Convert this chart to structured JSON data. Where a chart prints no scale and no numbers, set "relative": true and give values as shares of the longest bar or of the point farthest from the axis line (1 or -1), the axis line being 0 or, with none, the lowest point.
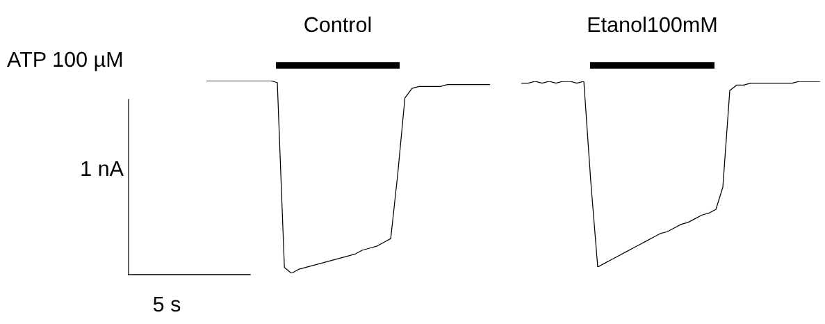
{
  "chart_data": [
    {
      "type": "line",
      "title": "Control",
      "relative": true,
      "annotations": [
        "ATP 100 µM",
        "1 nA",
        "5 s"
      ],
      "categories": [
        null,
        null,
        null,
        null,
        null,
        null,
        null,
        null,
        null,
        null,
        null,
        null,
        null,
        null,
        null,
        null,
        null,
        null,
        null,
        null,
        null,
        null,
        null,
        null,
        null,
        null,
        null,
        null,
        null,
        null,
        null,
        null,
        null,
        null,
        null,
        null,
        null,
        null,
        null,
        null,
        null
      ],
      "series": [
        {
          "color": "#000000",
          "values": [
            1.0,
            1.0,
            1.0,
            1.0,
            1.0,
            1.0,
            1.0,
            1.0,
            1.0,
            1.0,
            0.99,
            0.03,
            0.0,
            0.02,
            0.03,
            0.04,
            0.05,
            0.06,
            0.07,
            0.08,
            0.09,
            0.1,
            0.12,
            0.13,
            0.14,
            0.16,
            0.18,
            0.52,
            0.91,
            0.96,
            0.97,
            0.97,
            0.97,
            0.97,
            0.98,
            0.98,
            0.98,
            0.98,
            0.98,
            0.98,
            0.98
          ]
        }
      ]
    },
    {
      "type": "line",
      "title": "Etanol100mM",
      "relative": true,
      "categories": [
        null,
        null,
        null,
        null,
        null,
        null,
        null,
        null,
        null,
        null,
        null,
        null,
        null,
        null,
        null,
        null,
        null,
        null,
        null,
        null,
        null,
        null,
        null,
        null,
        null,
        null,
        null,
        null,
        null,
        null,
        null,
        null,
        null,
        null,
        null,
        null,
        null,
        null,
        null,
        null,
        null,
        null,
        null,
        null
      ],
      "series": [
        {
          "color": "#000000",
          "values": [
            0.99,
            0.99,
            1.0,
            0.99,
            1.0,
            0.99,
            1.0,
            1.0,
            0.99,
            1.0,
            0.46,
            0.0,
            0.02,
            0.04,
            0.06,
            0.08,
            0.1,
            0.12,
            0.14,
            0.16,
            0.18,
            0.19,
            0.21,
            0.23,
            0.24,
            0.26,
            0.28,
            0.29,
            0.31,
            0.43,
            0.95,
            0.98,
            0.98,
            0.99,
            0.99,
            0.99,
            0.99,
            0.99,
            0.99,
            0.99,
            1.0,
            1.0,
            1.0,
            1.0
          ]
        }
      ]
    }
  ]
}
